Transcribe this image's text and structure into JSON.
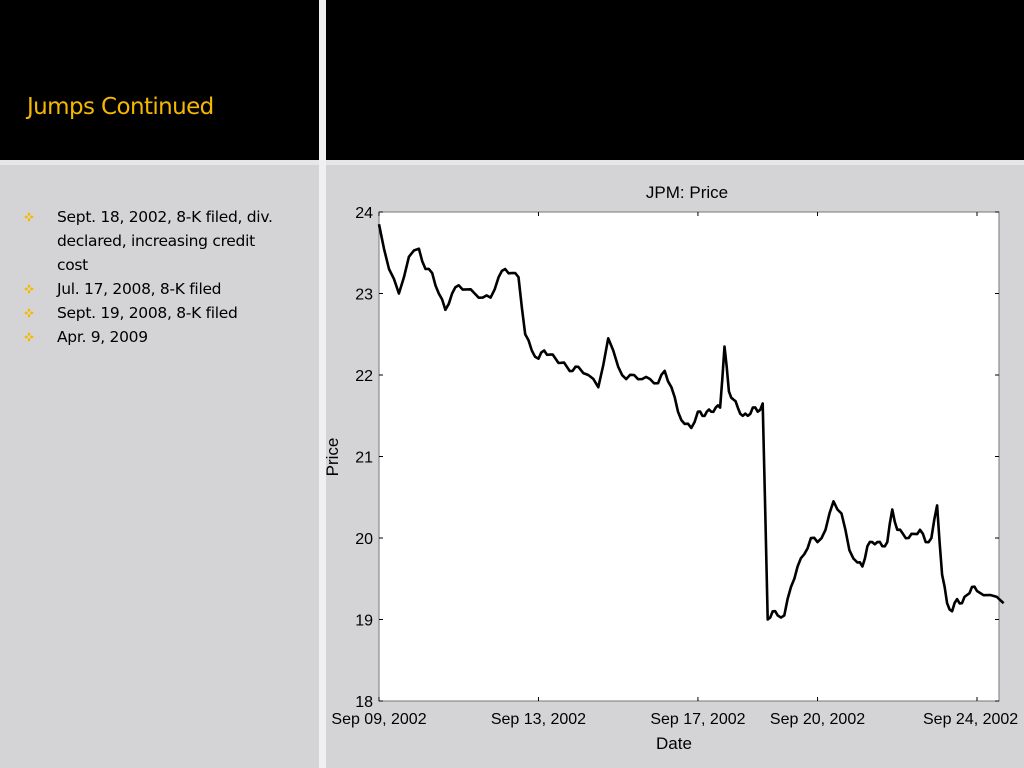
{
  "slide": {
    "title": "Jumps Continued",
    "bullets": [
      "Sept. 18, 2002, 8-K filed, div. declared, increasing credit cost",
      "Jul. 17, 2008, 8-K filed",
      "Sept. 19, 2008, 8-K filed",
      "Apr. 9, 2009"
    ],
    "colors": {
      "title": "#f5b800",
      "bullet_icon": "#f5b800",
      "background": "#d4d4d6",
      "header": "#000000",
      "line": "#000000"
    },
    "bullet_icon_name": "diamond-bullet-icon"
  },
  "chart_data": {
    "type": "line",
    "title": "JPM: Price",
    "xlabel": "Date",
    "ylabel": "Price",
    "ylim": [
      18,
      24
    ],
    "yticks": [
      18,
      19,
      20,
      21,
      22,
      23,
      24
    ],
    "xticks": [
      "Sep 09, 2002",
      "Sep 13, 2002",
      "Sep 17, 2002",
      "Sep 20, 2002",
      "Sep 24, 2002"
    ],
    "grid": false,
    "series": [
      {
        "x": [
          "Sep 09, 2002",
          "Sep 09, 2002",
          "Sep 09, 2002",
          "Sep 09, 2002",
          "Sep 10, 2002",
          "Sep 10, 2002",
          "Sep 10, 2002",
          "Sep 10, 2002",
          "Sep 10, 2002",
          "Sep 10, 2002",
          "Sep 11, 2002",
          "Sep 11, 2002",
          "Sep 11, 2002",
          "Sep 11, 2002",
          "Sep 11, 2002",
          "Sep 12, 2002",
          "Sep 12, 2002",
          "Sep 12, 2002",
          "Sep 12, 2002",
          "Sep 12, 2002",
          "Sep 12, 2002",
          "Sep 13, 2002",
          "Sep 13, 2002",
          "Sep 13, 2002",
          "Sep 13, 2002",
          "Sep 13, 2002",
          "Sep 13, 2002",
          "Sep 13, 2002",
          "Sep 14, 2002",
          "Sep 14, 2002",
          "Sep 14, 2002",
          "Sep 14, 2002",
          "Sep 15, 2002",
          "Sep 15, 2002",
          "Sep 15, 2002",
          "Sep 15, 2002",
          "Sep 15, 2002",
          "Sep 16, 2002",
          "Sep 16, 2002",
          "Sep 16, 2002",
          "Sep 16, 2002",
          "Sep 16, 2002",
          "Sep 16, 2002",
          "Sep 17, 2002",
          "Sep 17, 2002",
          "Sep 17, 2002",
          "Sep 17, 2002",
          "Sep 17, 2002",
          "Sep 17, 2002",
          "Sep 17, 2002",
          "Sep 17, 2002",
          "Sep 17, 2002",
          "Sep 18, 2002",
          "Sep 18, 2002",
          "Sep 18, 2002",
          "Sep 18, 2002",
          "Sep 18, 2002",
          "Sep 18, 2002",
          "Sep 18, 2002",
          "Sep 18, 2002",
          "Sep 19, 2002",
          "Sep 19, 2002",
          "Sep 19, 2002",
          "Sep 19, 2002",
          "Sep 19, 2002",
          "Sep 19, 2002",
          "Sep 20, 2002",
          "Sep 20, 2002",
          "Sep 20, 2002",
          "Sep 20, 2002",
          "Sep 20, 2002",
          "Sep 21, 2002",
          "Sep 21, 2002",
          "Sep 21, 2002",
          "Sep 21, 2002",
          "Sep 21, 2002",
          "Sep 21, 2002",
          "Sep 21, 2002",
          "Sep 21, 2002",
          "Sep 22, 2002",
          "Sep 22, 2002",
          "Sep 22, 2002",
          "Sep 22, 2002",
          "Sep 22, 2002",
          "Sep 22, 2002",
          "Sep 22, 2002",
          "Sep 23, 2002",
          "Sep 23, 2002",
          "Sep 23, 2002",
          "Sep 23, 2002",
          "Sep 23, 2002",
          "Sep 23, 2002",
          "Sep 23, 2002",
          "Sep 23, 2002",
          "Sep 24, 2002",
          "Sep 24, 2002",
          "Sep 24, 2002"
        ],
        "y": [
          23.85,
          23.3,
          23.0,
          23.45,
          23.55,
          23.3,
          23.25,
          23.0,
          22.8,
          23.0,
          23.1,
          23.05,
          23.0,
          22.95,
          22.95,
          23.2,
          23.3,
          23.25,
          23.2,
          22.5,
          22.3,
          22.2,
          22.3,
          22.25,
          22.2,
          22.15,
          22.1,
          22.05,
          22.1,
          22.0,
          21.85,
          22.45,
          22.1,
          21.95,
          22.0,
          21.95,
          21.95,
          21.9,
          22.05,
          21.85,
          21.55,
          21.4,
          21.35,
          21.55,
          21.5,
          21.55,
          21.55,
          21.6,
          21.6,
          22.35,
          21.8,
          21.7,
          21.6,
          21.5,
          21.5,
          21.6,
          21.55,
          21.65,
          19.0,
          19.1,
          19.05,
          19.05,
          19.4,
          19.65,
          19.8,
          20.0,
          19.95,
          20.1,
          20.45,
          20.3,
          19.85,
          19.7,
          19.65,
          19.9,
          19.95,
          19.95,
          19.9,
          19.95,
          20.35,
          20.1,
          20.05,
          20.0,
          20.05,
          20.1,
          19.95,
          20.0,
          20.4,
          19.55,
          19.2,
          19.1,
          19.25,
          19.2,
          19.3,
          19.4,
          19.35,
          19.3,
          19.2
        ]
      }
    ]
  }
}
